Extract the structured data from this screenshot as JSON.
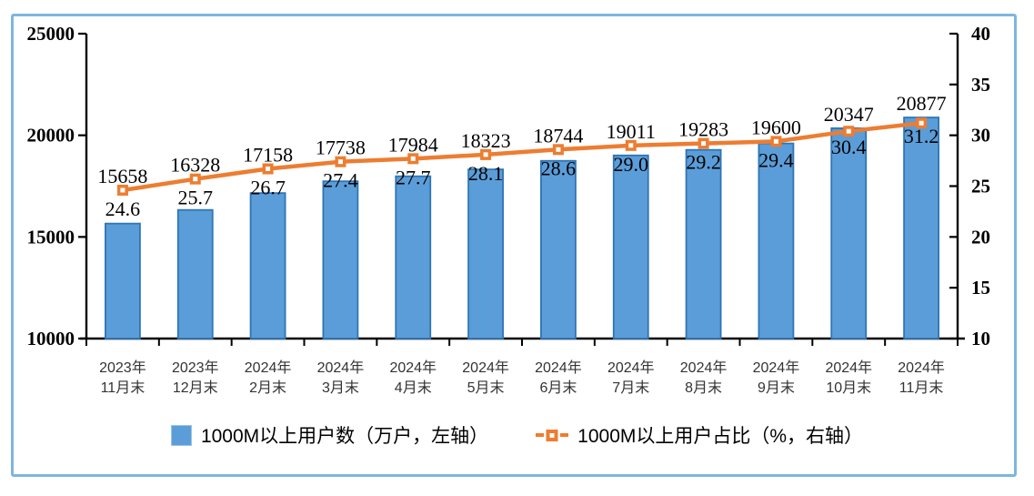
{
  "chart_data": {
    "type": "bar",
    "subtype": "bar-line-combo",
    "categories": [
      {
        "line1": "2023年",
        "line2": "11月末"
      },
      {
        "line1": "2023年",
        "line2": "12月末"
      },
      {
        "line1": "2024年",
        "line2": "2月末"
      },
      {
        "line1": "2024年",
        "line2": "3月末"
      },
      {
        "line1": "2024年",
        "line2": "4月末"
      },
      {
        "line1": "2024年",
        "line2": "5月末"
      },
      {
        "line1": "2024年",
        "line2": "6月末"
      },
      {
        "line1": "2024年",
        "line2": "7月末"
      },
      {
        "line1": "2024年",
        "line2": "8月末"
      },
      {
        "line1": "2024年",
        "line2": "9月末"
      },
      {
        "line1": "2024年",
        "line2": "10月末"
      },
      {
        "line1": "2024年",
        "line2": "11月末"
      }
    ],
    "series": [
      {
        "name": "1000M以上用户数（万户，左轴）",
        "kind": "bar",
        "axis": "left",
        "values": [
          15658,
          16328,
          17158,
          17738,
          17984,
          18323,
          18744,
          19011,
          19283,
          19600,
          20347,
          20877
        ]
      },
      {
        "name": "1000M以上用户占比（%，右轴）",
        "kind": "line",
        "axis": "right",
        "values": [
          24.6,
          25.7,
          26.7,
          27.4,
          27.7,
          28.1,
          28.6,
          29.0,
          29.2,
          29.4,
          30.4,
          31.2
        ]
      }
    ],
    "title": "",
    "xlabel": "",
    "ylabel_left": "",
    "ylabel_right": "",
    "left_axis": {
      "min": 10000,
      "max": 25000,
      "step": 5000
    },
    "right_axis": {
      "min": 10,
      "max": 40,
      "step": 5
    },
    "grid": false,
    "legend_position": "bottom",
    "colors": {
      "bar_fill": "#5b9dd8",
      "bar_border": "#2e75b6",
      "line": "#ed7d31",
      "marker_fill": "#ed7d31",
      "marker_center": "#ffffff",
      "axis": "#000000",
      "frame_border": "#7fb5df",
      "label_text": "#000000",
      "x_label_text": "#333333"
    }
  },
  "legend": {
    "items": [
      {
        "label": "1000M以上用户数（万户，左轴）"
      },
      {
        "label": "1000M以上用户占比（%，右轴）"
      }
    ]
  }
}
